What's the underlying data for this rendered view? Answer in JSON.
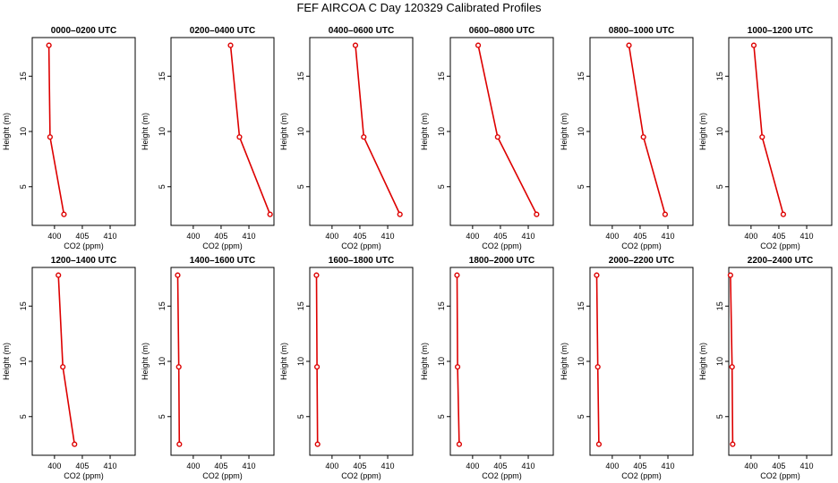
{
  "figure": {
    "title": "FEF AIRCOA C  Day 120329  Calibrated Profiles"
  },
  "colors": {
    "profile": "#dd0000",
    "axis": "#000000",
    "background": "#ffffff"
  },
  "chart_data": [
    {
      "type": "line",
      "title": "0000–0200 UTC",
      "xlabel": "CO2 (ppm)",
      "ylabel": "Height (m)",
      "xlim": [
        396,
        414.5
      ],
      "ylim": [
        1.5,
        18.5
      ],
      "xticks": [
        400,
        405,
        410
      ],
      "yticks": [
        5,
        10,
        15
      ],
      "series": [
        {
          "name": "profile",
          "points": [
            {
              "x": 399,
              "y": 17.8
            },
            {
              "x": 399.2,
              "y": 9.5
            },
            {
              "x": 401.7,
              "y": 2.5
            }
          ]
        }
      ]
    },
    {
      "type": "line",
      "title": "0200–0400 UTC",
      "xlabel": "CO2 (ppm)",
      "ylabel": "Height (m)",
      "xlim": [
        396,
        414.5
      ],
      "ylim": [
        1.5,
        18.5
      ],
      "xticks": [
        400,
        405,
        410
      ],
      "yticks": [
        5,
        10,
        15
      ],
      "series": [
        {
          "name": "profile",
          "points": [
            {
              "x": 406.7,
              "y": 17.8
            },
            {
              "x": 408.3,
              "y": 9.5
            },
            {
              "x": 413.8,
              "y": 2.5
            }
          ]
        }
      ]
    },
    {
      "type": "line",
      "title": "0400–0600 UTC",
      "xlabel": "CO2 (ppm)",
      "ylabel": "Height (m)",
      "xlim": [
        396,
        414.5
      ],
      "ylim": [
        1.5,
        18.5
      ],
      "xticks": [
        400,
        405,
        410
      ],
      "yticks": [
        5,
        10,
        15
      ],
      "series": [
        {
          "name": "profile",
          "points": [
            {
              "x": 404.2,
              "y": 17.8
            },
            {
              "x": 405.7,
              "y": 9.5
            },
            {
              "x": 412.2,
              "y": 2.5
            }
          ]
        }
      ]
    },
    {
      "type": "line",
      "title": "0600–0800 UTC",
      "xlabel": "CO2 (ppm)",
      "ylabel": "Height (m)",
      "xlim": [
        396,
        414.5
      ],
      "ylim": [
        1.5,
        18.5
      ],
      "xticks": [
        400,
        405,
        410
      ],
      "yticks": [
        5,
        10,
        15
      ],
      "series": [
        {
          "name": "profile",
          "points": [
            {
              "x": 401,
              "y": 17.8
            },
            {
              "x": 404.5,
              "y": 9.5
            },
            {
              "x": 411.5,
              "y": 2.5
            }
          ]
        }
      ]
    },
    {
      "type": "line",
      "title": "0800–1000 UTC",
      "xlabel": "CO2 (ppm)",
      "ylabel": "Height (m)",
      "xlim": [
        396,
        414.5
      ],
      "ylim": [
        1.5,
        18.5
      ],
      "xticks": [
        400,
        405,
        410
      ],
      "yticks": [
        5,
        10,
        15
      ],
      "series": [
        {
          "name": "profile",
          "points": [
            {
              "x": 403,
              "y": 17.8
            },
            {
              "x": 405.6,
              "y": 9.5
            },
            {
              "x": 409.5,
              "y": 2.5
            }
          ]
        }
      ]
    },
    {
      "type": "line",
      "title": "1000–1200 UTC",
      "xlabel": "CO2 (ppm)",
      "ylabel": "Height (m)",
      "xlim": [
        396,
        414.5
      ],
      "ylim": [
        1.5,
        18.5
      ],
      "xticks": [
        400,
        405,
        410
      ],
      "yticks": [
        5,
        10,
        15
      ],
      "series": [
        {
          "name": "profile",
          "points": [
            {
              "x": 400.5,
              "y": 17.8
            },
            {
              "x": 402,
              "y": 9.5
            },
            {
              "x": 405.8,
              "y": 2.5
            }
          ]
        }
      ]
    },
    {
      "type": "line",
      "title": "1200–1400 UTC",
      "xlabel": "CO2 (ppm)",
      "ylabel": "Height (m)",
      "xlim": [
        396,
        414.5
      ],
      "ylim": [
        1.5,
        18.5
      ],
      "xticks": [
        400,
        405,
        410
      ],
      "yticks": [
        5,
        10,
        15
      ],
      "series": [
        {
          "name": "profile",
          "points": [
            {
              "x": 400.7,
              "y": 17.8
            },
            {
              "x": 401.5,
              "y": 9.5
            },
            {
              "x": 403.6,
              "y": 2.5
            }
          ]
        }
      ]
    },
    {
      "type": "line",
      "title": "1400–1600 UTC",
      "xlabel": "CO2 (ppm)",
      "ylabel": "Height (m)",
      "xlim": [
        396,
        414.5
      ],
      "ylim": [
        1.5,
        18.5
      ],
      "xticks": [
        400,
        405,
        410
      ],
      "yticks": [
        5,
        10,
        15
      ],
      "series": [
        {
          "name": "profile",
          "points": [
            {
              "x": 397.2,
              "y": 17.8
            },
            {
              "x": 397.4,
              "y": 9.5
            },
            {
              "x": 397.5,
              "y": 2.5
            }
          ]
        }
      ]
    },
    {
      "type": "line",
      "title": "1600–1800 UTC",
      "xlabel": "CO2 (ppm)",
      "ylabel": "Height (m)",
      "xlim": [
        396,
        414.5
      ],
      "ylim": [
        1.5,
        18.5
      ],
      "xticks": [
        400,
        405,
        410
      ],
      "yticks": [
        5,
        10,
        15
      ],
      "series": [
        {
          "name": "profile",
          "points": [
            {
              "x": 397.2,
              "y": 17.8
            },
            {
              "x": 397.3,
              "y": 9.5
            },
            {
              "x": 397.4,
              "y": 2.5
            }
          ]
        }
      ]
    },
    {
      "type": "line",
      "title": "1800–2000 UTC",
      "xlabel": "CO2 (ppm)",
      "ylabel": "Height (m)",
      "xlim": [
        396,
        414.5
      ],
      "ylim": [
        1.5,
        18.5
      ],
      "xticks": [
        400,
        405,
        410
      ],
      "yticks": [
        5,
        10,
        15
      ],
      "series": [
        {
          "name": "profile",
          "points": [
            {
              "x": 397.2,
              "y": 17.8
            },
            {
              "x": 397.3,
              "y": 9.5
            },
            {
              "x": 397.6,
              "y": 2.5
            }
          ]
        }
      ]
    },
    {
      "type": "line",
      "title": "2000–2200 UTC",
      "xlabel": "CO2 (ppm)",
      "ylabel": "Height (m)",
      "xlim": [
        396,
        414.5
      ],
      "ylim": [
        1.5,
        18.5
      ],
      "xticks": [
        400,
        405,
        410
      ],
      "yticks": [
        5,
        10,
        15
      ],
      "series": [
        {
          "name": "profile",
          "points": [
            {
              "x": 397.2,
              "y": 17.8
            },
            {
              "x": 397.4,
              "y": 9.5
            },
            {
              "x": 397.6,
              "y": 2.5
            }
          ]
        }
      ]
    },
    {
      "type": "line",
      "title": "2200–2400 UTC",
      "xlabel": "CO2 (ppm)",
      "ylabel": "Height (m)",
      "xlim": [
        396,
        414.5
      ],
      "ylim": [
        1.5,
        18.5
      ],
      "xticks": [
        400,
        405,
        410
      ],
      "yticks": [
        5,
        10,
        15
      ],
      "series": [
        {
          "name": "profile",
          "points": [
            {
              "x": 396.3,
              "y": 17.8
            },
            {
              "x": 396.6,
              "y": 9.5
            },
            {
              "x": 396.7,
              "y": 2.5
            }
          ]
        }
      ]
    }
  ]
}
